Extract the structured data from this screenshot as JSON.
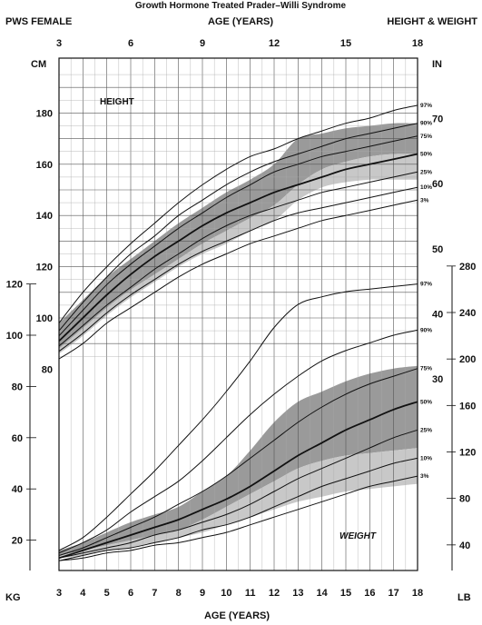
{
  "header": {
    "title": "Growth Hormone Treated Prader–Willi Syndrome",
    "left": "PWS FEMALE",
    "center": "AGE (YEARS)",
    "right": "HEIGHT & WEIGHT",
    "bottom_axis_title": "AGE (YEARS)"
  },
  "units": {
    "cm": "CM",
    "in": "IN",
    "kg": "KG",
    "lb": "LB"
  },
  "labels": {
    "height": "HEIGHT",
    "weight": "WEIGHT"
  },
  "chart_data": {
    "type": "line",
    "x": [
      3,
      4,
      5,
      6,
      7,
      8,
      9,
      10,
      11,
      12,
      13,
      14,
      15,
      16,
      17,
      18
    ],
    "xlim": [
      3,
      18
    ],
    "top_ticks": [
      "3",
      "6",
      "9",
      "12",
      "15",
      "18"
    ],
    "bottom_ticks": [
      "3",
      "4",
      "5",
      "6",
      "7",
      "8",
      "9",
      "10",
      "11",
      "12",
      "13",
      "14",
      "15",
      "16",
      "17",
      "18"
    ],
    "cm_ticks": [
      "180",
      "160",
      "140",
      "120",
      "100",
      "80"
    ],
    "in_ticks": [
      "70",
      "60",
      "50",
      "40",
      "30"
    ],
    "kg_ticks": [
      "120",
      "100",
      "80",
      "60",
      "40",
      "20"
    ],
    "lb_ticks": [
      "280",
      "240",
      "200",
      "160",
      "120",
      "80",
      "40"
    ],
    "height": {
      "unit": "cm",
      "bands": [
        {
          "shade": "#9a9a9a",
          "lower": [
            88,
            96,
            104,
            111,
            117,
            123,
            129,
            134,
            139,
            144,
            152,
            158,
            161,
            163,
            164,
            164
          ],
          "upper": [
            98,
            107,
            116,
            123,
            130,
            137,
            143,
            149,
            154,
            160,
            170,
            172,
            174,
            175,
            176,
            176
          ]
        },
        {
          "shade": "#c8c8c8",
          "lower": [
            86,
            93,
            101,
            108,
            114,
            120,
            125,
            129,
            134,
            138,
            146,
            151,
            153,
            154,
            154,
            154
          ],
          "upper": [
            88,
            96,
            104,
            111,
            117,
            123,
            129,
            134,
            139,
            144,
            152,
            158,
            161,
            163,
            164,
            164
          ]
        }
      ],
      "series": [
        {
          "name": "97%",
          "values": [
            98,
            110,
            120,
            129,
            137,
            145,
            152,
            158,
            163,
            166,
            170,
            173,
            176,
            178,
            181,
            183
          ],
          "weight": 1
        },
        {
          "name": "90%",
          "values": [
            95,
            106,
            116,
            125,
            132,
            140,
            146,
            152,
            157,
            161,
            164,
            167,
            170,
            172,
            174,
            176
          ],
          "weight": 1
        },
        {
          "name": "75%",
          "values": [
            93,
            103,
            113,
            121,
            128,
            135,
            141,
            147,
            152,
            157,
            160,
            163,
            165,
            167,
            169,
            171
          ],
          "weight": 1
        },
        {
          "name": "50%",
          "values": [
            91,
            100,
            109,
            117,
            124,
            130,
            136,
            141,
            145,
            149,
            152,
            155,
            158,
            160,
            162,
            164
          ],
          "weight": 1.8
        },
        {
          "name": "25%",
          "values": [
            89,
            97,
            105,
            112,
            119,
            125,
            131,
            136,
            140,
            143,
            146,
            149,
            151,
            153,
            155,
            157
          ],
          "weight": 1
        },
        {
          "name": "10%",
          "values": [
            87,
            94,
            102,
            109,
            115,
            121,
            126,
            130,
            134,
            138,
            141,
            143,
            145,
            147,
            149,
            151
          ],
          "weight": 1
        },
        {
          "name": "3%",
          "values": [
            84,
            90,
            98,
            104,
            110,
            116,
            121,
            125,
            129,
            132,
            135,
            138,
            140,
            142,
            144,
            146
          ],
          "weight": 1
        }
      ]
    },
    "weight": {
      "unit": "kg",
      "bands": [
        {
          "shade": "#9a9a9a",
          "lower": [
            14,
            16,
            18,
            20,
            22,
            24,
            28,
            33,
            38,
            43,
            48,
            51,
            53,
            54,
            55,
            56
          ],
          "upper": [
            16,
            19,
            23,
            27,
            30,
            33,
            39,
            45,
            55,
            66,
            74,
            78,
            82,
            85,
            87,
            88
          ]
        },
        {
          "shade": "#c8c8c8",
          "lower": [
            13,
            14,
            16,
            17,
            19,
            21,
            23,
            26,
            29,
            32,
            35,
            37,
            39,
            40,
            41,
            42
          ],
          "upper": [
            14,
            16,
            18,
            20,
            22,
            24,
            28,
            33,
            38,
            43,
            48,
            51,
            53,
            54,
            55,
            56
          ]
        }
      ],
      "series": [
        {
          "name": "97%",
          "values": [
            16,
            21,
            29,
            38,
            47,
            57,
            67,
            78,
            90,
            103,
            112,
            115,
            117,
            118,
            119,
            120
          ],
          "weight": 1
        },
        {
          "name": "90%",
          "values": [
            15,
            19,
            24,
            31,
            37,
            43,
            51,
            60,
            69,
            77,
            84,
            90,
            94,
            97,
            100,
            102
          ],
          "weight": 1
        },
        {
          "name": "75%",
          "values": [
            14,
            17,
            21,
            25,
            29,
            34,
            39,
            45,
            52,
            59,
            66,
            72,
            77,
            81,
            84,
            87
          ],
          "weight": 1
        },
        {
          "name": "50%",
          "values": [
            13,
            16,
            19,
            22,
            25,
            28,
            32,
            36,
            41,
            47,
            53,
            58,
            63,
            67,
            71,
            74
          ],
          "weight": 1.8
        },
        {
          "name": "25%",
          "values": [
            13,
            15,
            17,
            19,
            22,
            24,
            27,
            30,
            34,
            39,
            44,
            48,
            52,
            56,
            60,
            63
          ],
          "weight": 1
        },
        {
          "name": "10%",
          "values": [
            12,
            14,
            16,
            17,
            19,
            21,
            24,
            26,
            29,
            33,
            37,
            41,
            44,
            47,
            50,
            52
          ],
          "weight": 1
        },
        {
          "name": "3%",
          "values": [
            12,
            13,
            15,
            16,
            18,
            19,
            21,
            23,
            26,
            29,
            32,
            35,
            38,
            41,
            43,
            45
          ],
          "weight": 1
        }
      ]
    }
  }
}
